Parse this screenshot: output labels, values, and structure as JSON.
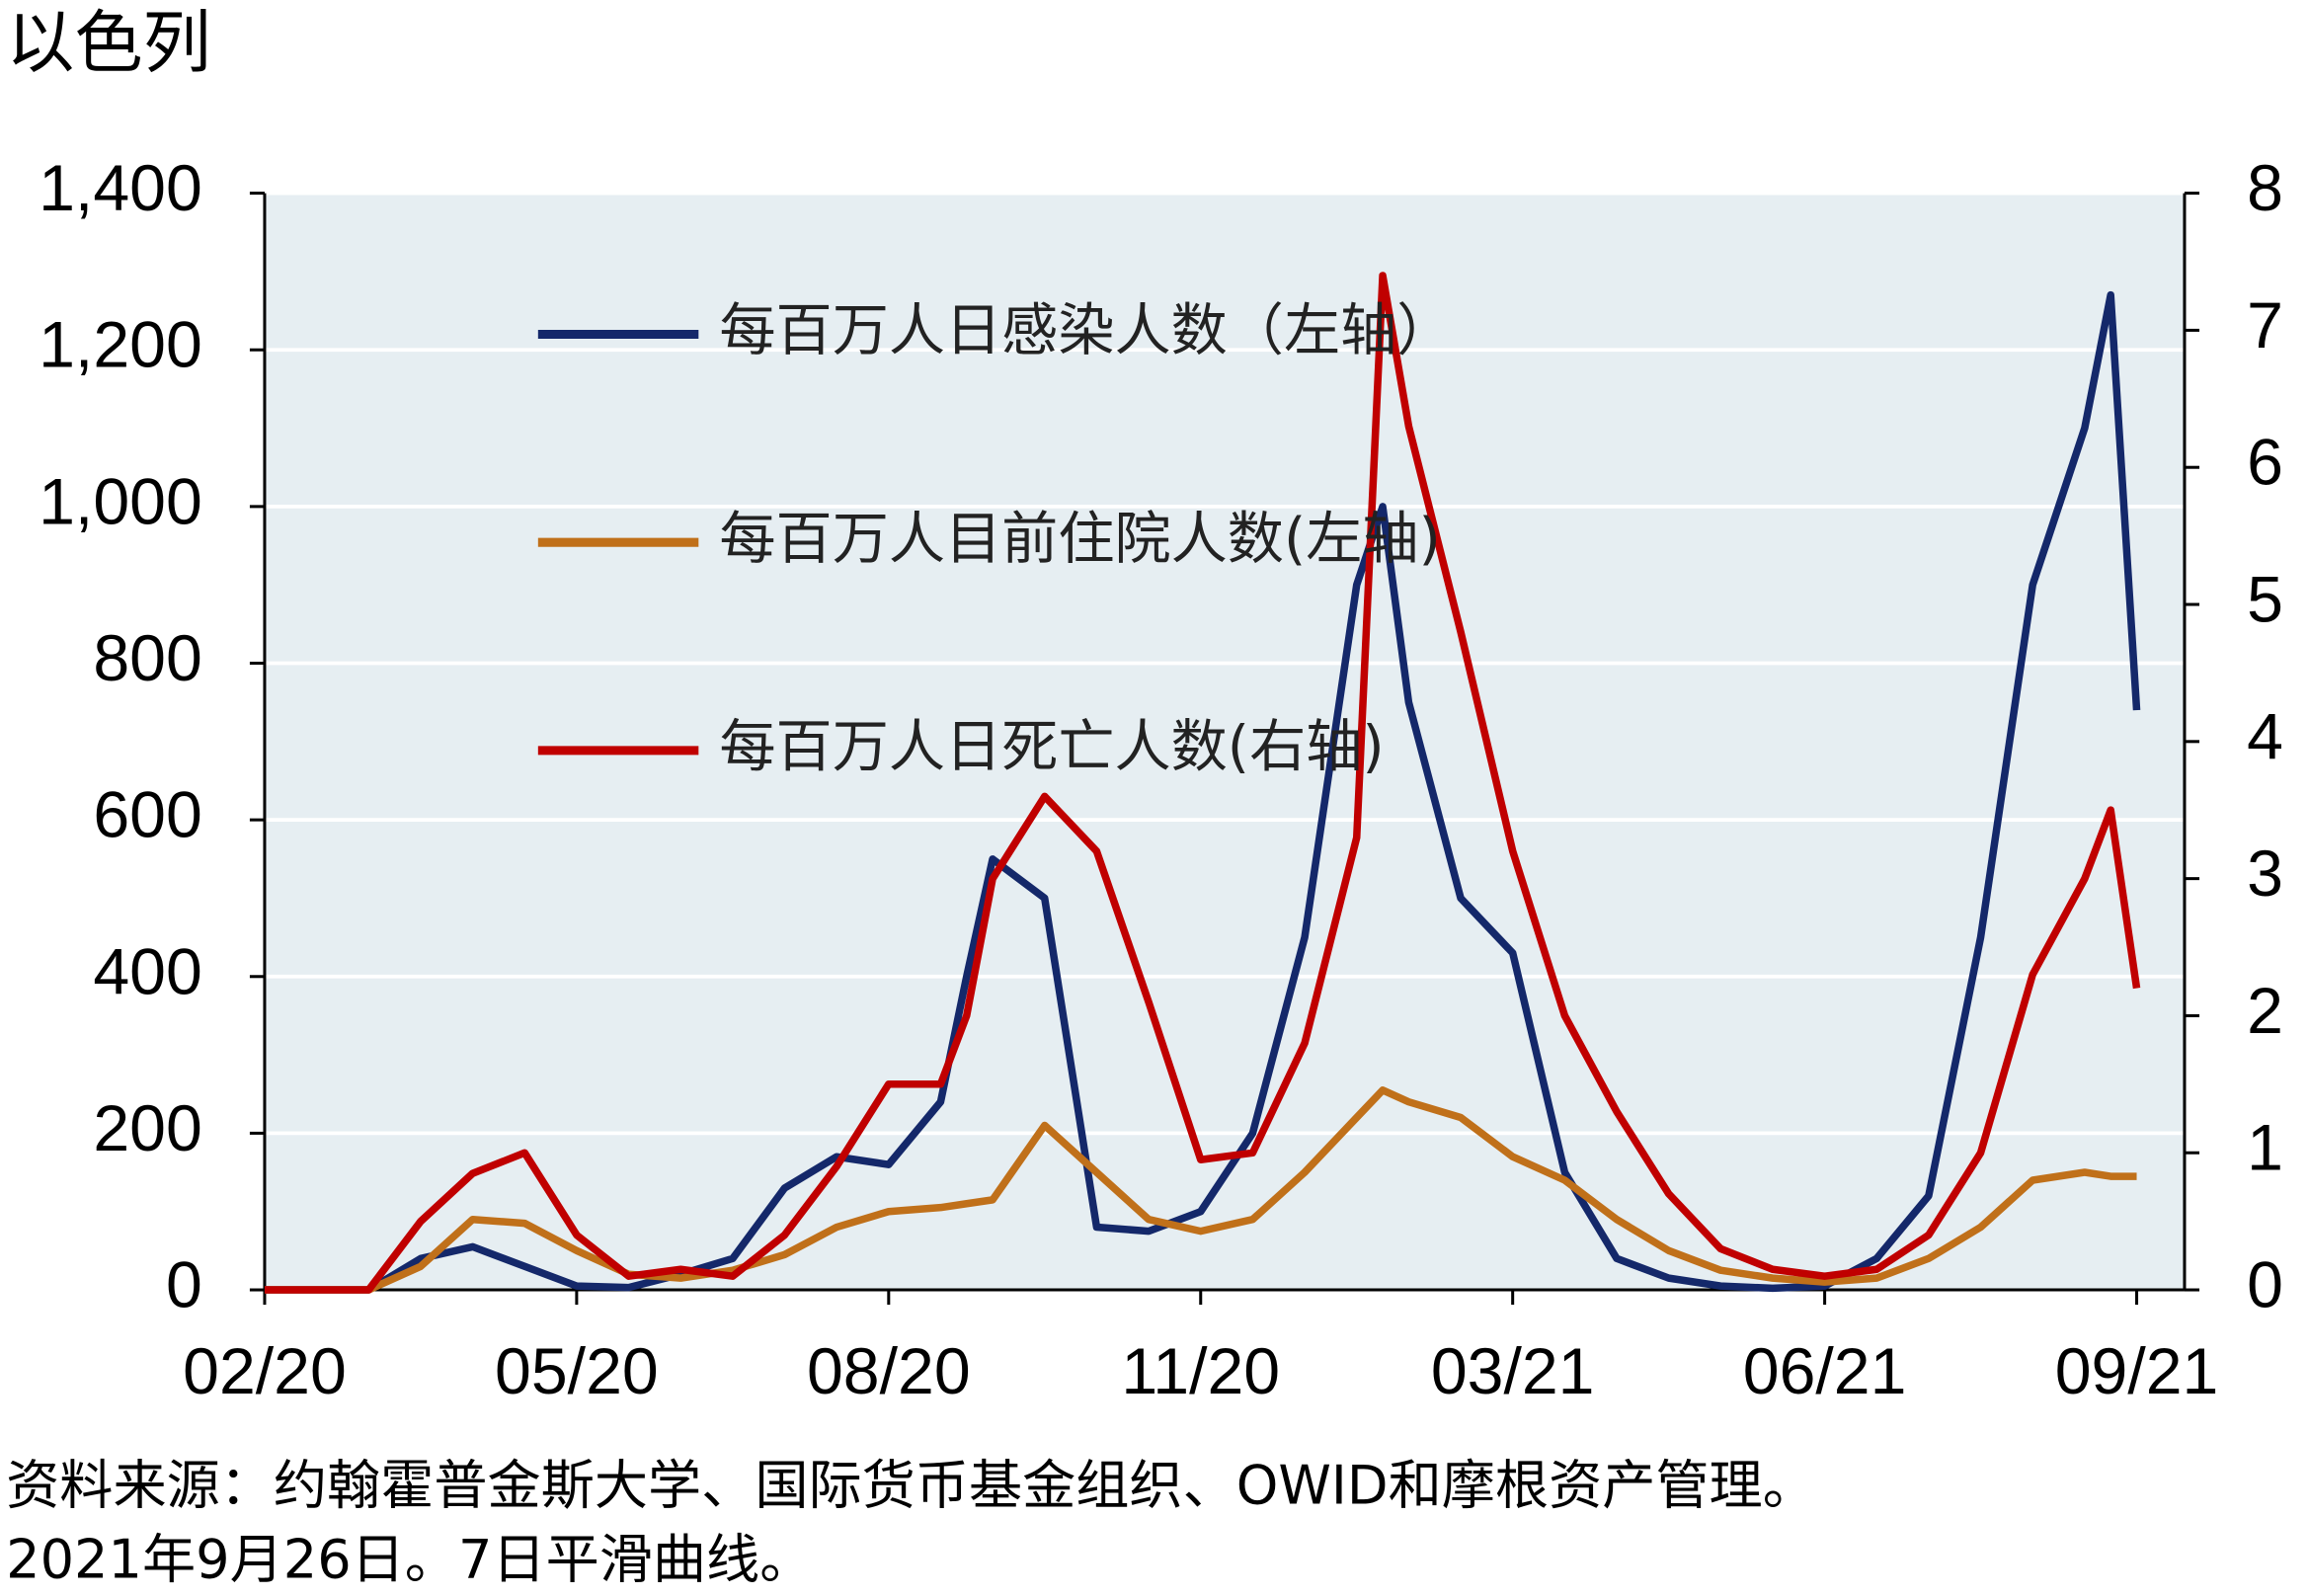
{
  "chart_data": {
    "type": "line",
    "title": "以色列",
    "source": "资料来源：约翰霍普金斯大学、国际货币基金组织、OWID和摩根资产管理。",
    "note": "2021年9月26日。7日平滑曲线。",
    "x": [
      0,
      0.5,
      1,
      1.5,
      2,
      2.5,
      3,
      3.5,
      4,
      4.5,
      5,
      5.5,
      6,
      6.5,
      6.75,
      7,
      7.5,
      8,
      8.5,
      9,
      9.5,
      10,
      10.5,
      10.75,
      11,
      11.5,
      12,
      12.5,
      13,
      13.5,
      14,
      14.5,
      15,
      15.5,
      16,
      16.5,
      17,
      17.5,
      17.75,
      18
    ],
    "xlim": [
      0,
      18.46
    ],
    "xticks": [
      {
        "value": 0,
        "label": "02/20"
      },
      {
        "value": 3,
        "label": "05/20"
      },
      {
        "value": 6,
        "label": "08/20"
      },
      {
        "value": 9,
        "label": "11/20"
      },
      {
        "value": 12,
        "label": "03/21"
      },
      {
        "value": 15,
        "label": "06/21"
      },
      {
        "value": 18,
        "label": "09/21"
      }
    ],
    "ylim": [
      0,
      1400
    ],
    "yticks": [
      0,
      200,
      400,
      600,
      800,
      {
        "value": 1000,
        "label": "1,000"
      },
      {
        "value": 1200,
        "label": "1,200"
      },
      {
        "value": 1400,
        "label": "1,400"
      }
    ],
    "y2lim": [
      0,
      8
    ],
    "y2ticks": [
      0,
      1,
      2,
      3,
      4,
      5,
      6,
      7,
      8
    ],
    "grid": true,
    "series": [
      {
        "name": "每百万人日感染人数（左轴）",
        "color": "#14286a",
        "axis": "y",
        "values": [
          0,
          0,
          0,
          40,
          55,
          30,
          5,
          3,
          20,
          40,
          130,
          170,
          160,
          240,
          400,
          550,
          500,
          80,
          75,
          100,
          200,
          450,
          900,
          1000,
          750,
          500,
          430,
          150,
          40,
          15,
          5,
          2,
          5,
          40,
          120,
          450,
          900,
          1100,
          1270,
          740
        ]
      },
      {
        "name": "每百万人目前住院人数(左轴)",
        "color": "#c0701a",
        "axis": "y",
        "values": [
          0,
          0,
          0,
          30,
          90,
          85,
          50,
          20,
          15,
          25,
          45,
          80,
          100,
          105,
          110,
          115,
          210,
          150,
          90,
          75,
          90,
          150,
          220,
          255,
          240,
          220,
          170,
          140,
          90,
          50,
          25,
          15,
          10,
          15,
          40,
          80,
          140,
          150,
          145,
          145
        ]
      },
      {
        "name": "每百万人日死亡人数(右轴)",
        "color": "#c00000",
        "axis": "y2",
        "values": [
          0,
          0,
          0,
          0.5,
          0.85,
          1.0,
          0.4,
          0.1,
          0.15,
          0.1,
          0.4,
          0.9,
          1.5,
          1.5,
          2.0,
          3.0,
          3.6,
          3.2,
          2.1,
          0.95,
          1.0,
          1.8,
          3.3,
          7.4,
          6.3,
          4.8,
          3.2,
          2.0,
          1.3,
          0.7,
          0.3,
          0.15,
          0.1,
          0.15,
          0.4,
          1.0,
          2.3,
          3.0,
          3.5,
          2.2
        ]
      }
    ]
  }
}
